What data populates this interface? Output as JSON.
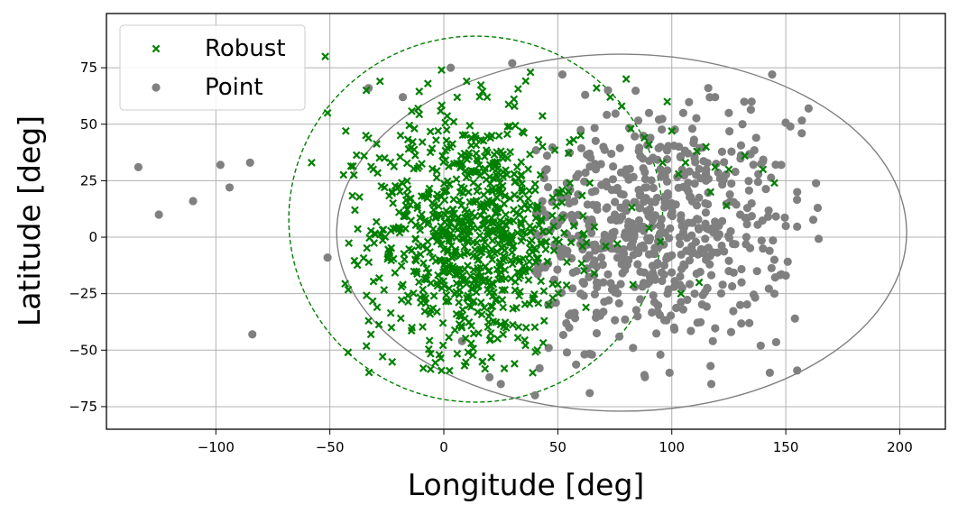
{
  "chart_data": {
    "type": "scatter",
    "xlabel": "Longitude [deg]",
    "ylabel": "Latitude [deg]",
    "xlim": [
      -148,
      220
    ],
    "ylim": [
      -85,
      99
    ],
    "xticks": [
      -100,
      -50,
      0,
      50,
      100,
      150,
      200
    ],
    "yticks": [
      -75,
      -50,
      -25,
      0,
      25,
      50,
      75
    ],
    "xtick_labels": [
      "−100",
      "−50",
      "0",
      "50",
      "100",
      "150",
      "200"
    ],
    "ytick_labels": [
      "−75",
      "−50",
      "−25",
      "0",
      "25",
      "50",
      "75"
    ],
    "grid": true,
    "legend_position": "top-left",
    "legend": [
      {
        "label": "Robust",
        "marker": "x",
        "color": "#008000"
      },
      {
        "label": "Point",
        "marker": "o",
        "color": "#808080"
      }
    ],
    "series": [
      {
        "name": "Robust",
        "marker": "x",
        "color": "#008000",
        "approx_count": 900,
        "cluster": {
          "center": [
            12,
            2
          ],
          "spread": [
            22,
            26
          ]
        },
        "points": [
          [
            -52,
            80
          ],
          [
            -58,
            33
          ],
          [
            -51,
            55
          ],
          [
            -43,
            47
          ],
          [
            -39,
            12
          ],
          [
            -35,
            36
          ],
          [
            -34,
            65
          ],
          [
            -28,
            69
          ],
          [
            -26,
            22
          ],
          [
            -24,
            -9
          ],
          [
            -18,
            -21
          ],
          [
            -15,
            17
          ],
          [
            -14,
            -40
          ],
          [
            -10,
            -29
          ],
          [
            -8,
            -27
          ],
          [
            -6,
            -34
          ],
          [
            -3,
            -33
          ],
          [
            -1,
            -59
          ],
          [
            -9,
            -58
          ],
          [
            -2,
            -52
          ],
          [
            -42,
            -51
          ],
          [
            -32,
            -43
          ],
          [
            -33,
            -37
          ],
          [
            -23,
            -40
          ],
          [
            12,
            -47
          ],
          [
            17,
            -55
          ],
          [
            26,
            -43
          ],
          [
            31,
            -56
          ],
          [
            39,
            -60
          ],
          [
            41,
            -50
          ],
          [
            44,
            -37
          ],
          [
            46,
            -30
          ],
          [
            50,
            -21
          ],
          [
            67,
            66
          ],
          [
            73,
            62
          ],
          [
            78,
            58
          ],
          [
            80,
            70
          ],
          [
            82,
            48
          ],
          [
            88,
            44
          ],
          [
            90,
            41
          ],
          [
            96,
            33
          ],
          [
            98,
            60
          ],
          [
            100,
            47
          ],
          [
            103,
            28
          ],
          [
            106,
            33
          ],
          [
            111,
            38
          ],
          [
            115,
            40
          ],
          [
            119,
            31
          ],
          [
            125,
            30
          ],
          [
            132,
            36
          ],
          [
            140,
            30
          ],
          [
            145,
            24
          ],
          [
            60,
            45
          ],
          [
            64,
            24
          ],
          [
            71,
            -4
          ],
          [
            83,
            -21
          ],
          [
            90,
            4
          ],
          [
            95,
            -2
          ],
          [
            104,
            -25
          ],
          [
            112,
            -20
          ],
          [
            117,
            20
          ],
          [
            124,
            14
          ],
          [
            54,
            -11
          ],
          [
            57,
            5
          ],
          [
            66,
            -16
          ],
          [
            38,
            73
          ],
          [
            31,
            58
          ],
          [
            19,
            62
          ],
          [
            10,
            69
          ],
          [
            -1,
            74
          ],
          [
            -7,
            68
          ],
          [
            21,
            45
          ],
          [
            28,
            49
          ],
          [
            -19,
            45
          ],
          [
            -26,
            35
          ],
          [
            -31,
            30
          ]
        ]
      },
      {
        "name": "Point",
        "marker": "o",
        "color": "#808080",
        "approx_count": 700,
        "cluster": {
          "center": [
            88,
            4
          ],
          "spread": [
            32,
            24
          ]
        },
        "points": [
          [
            -134,
            31
          ],
          [
            -125,
            10
          ],
          [
            -110,
            16
          ],
          [
            -98,
            32
          ],
          [
            -94,
            22
          ],
          [
            -85,
            33
          ],
          [
            -84,
            -43
          ],
          [
            -51,
            -9
          ],
          [
            -33,
            66
          ],
          [
            -18,
            62
          ],
          [
            3,
            75
          ],
          [
            30,
            77
          ],
          [
            52,
            72
          ],
          [
            62,
            63
          ],
          [
            72,
            65
          ],
          [
            109,
            48
          ],
          [
            116,
            66
          ],
          [
            119,
            62
          ],
          [
            131,
            50
          ],
          [
            137,
            44
          ],
          [
            144,
            72
          ],
          [
            152,
            49
          ],
          [
            157,
            46
          ],
          [
            160,
            57
          ],
          [
            164,
            13
          ],
          [
            150,
            -17
          ],
          [
            154,
            -36
          ],
          [
            155,
            -59
          ],
          [
            143,
            -60
          ],
          [
            139,
            -48
          ],
          [
            134,
            -38
          ],
          [
            126,
            -42
          ],
          [
            118,
            -46
          ],
          [
            117,
            -57
          ],
          [
            101,
            -40
          ],
          [
            95,
            -52
          ],
          [
            88,
            -61
          ],
          [
            99,
            -60
          ],
          [
            83,
            -49
          ],
          [
            77,
            -44
          ],
          [
            65,
            -52
          ],
          [
            64,
            -69
          ],
          [
            54,
            -51
          ],
          [
            46,
            -49
          ],
          [
            42,
            -58
          ],
          [
            40,
            -70
          ],
          [
            25,
            -65
          ],
          [
            20,
            -62
          ],
          [
            8,
            -46
          ],
          [
            55,
            -40
          ],
          [
            70,
            -33
          ],
          [
            85,
            -35
          ],
          [
            105,
            -32
          ],
          [
            130,
            -30
          ],
          [
            145,
            -25
          ],
          [
            150,
            5
          ],
          [
            148,
            32
          ],
          [
            155,
            20
          ],
          [
            130,
            10
          ],
          [
            115,
            25
          ],
          [
            100,
            15
          ],
          [
            95,
            30
          ],
          [
            80,
            15
          ],
          [
            75,
            -5
          ],
          [
            85,
            -12
          ],
          [
            100,
            -8
          ],
          [
            115,
            -10
          ],
          [
            125,
            -15
          ],
          [
            140,
            -5
          ],
          [
            60,
            0
          ],
          [
            65,
            20
          ],
          [
            70,
            40
          ],
          [
            90,
            55
          ],
          [
            105,
            55
          ],
          [
            125,
            55
          ],
          [
            135,
            60
          ],
          [
            110,
            35
          ],
          [
            95,
            40
          ],
          [
            80,
            30
          ],
          [
            75,
            10
          ],
          [
            90,
            -20
          ],
          [
            110,
            -25
          ],
          [
            120,
            0
          ],
          [
            135,
            15
          ],
          [
            145,
            -10
          ],
          [
            55,
            15
          ],
          [
            50,
            -5
          ],
          [
            45,
            10
          ],
          [
            40,
            -15
          ],
          [
            60,
            -25
          ],
          [
            70,
            -20
          ]
        ]
      }
    ],
    "ellipses": [
      {
        "series": "Robust",
        "style": "dashed",
        "color": "#008000",
        "center": [
          14,
          8
        ],
        "semi_axes": [
          82,
          81
        ]
      },
      {
        "series": "Point",
        "style": "solid",
        "color": "#808080",
        "center": [
          78,
          2
        ],
        "semi_axes": [
          125,
          79
        ]
      }
    ]
  }
}
